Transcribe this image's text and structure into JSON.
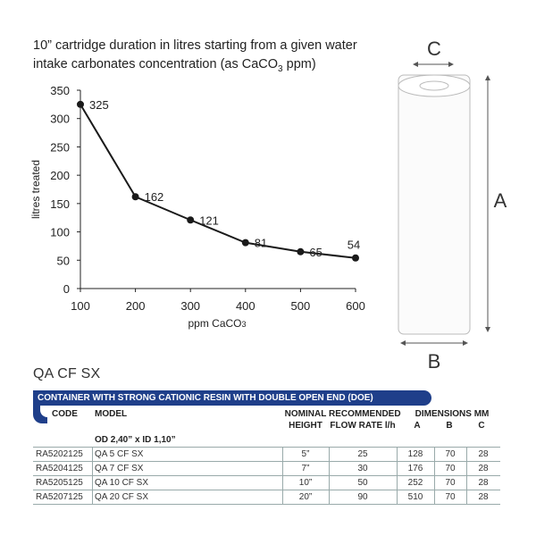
{
  "chart_data": {
    "type": "line",
    "title_main": "10” cartridge duration in litres starting from a given water intake carbonates concentration (as CaCO",
    "title_sub": "3",
    "title_end": " ppm)",
    "xlabel_main": "ppm CaCO",
    "xlabel_sub": "3",
    "ylabel": "litres treated",
    "x": [
      100,
      200,
      300,
      400,
      500,
      600
    ],
    "y": [
      325,
      162,
      121,
      81,
      65,
      54
    ],
    "data_labels": [
      "325",
      "162",
      "121",
      "81",
      "65",
      "54"
    ],
    "x_ticks": [
      "100",
      "200",
      "300",
      "400",
      "500",
      "600"
    ],
    "y_ticks": [
      "0",
      "50",
      "100",
      "150",
      "200",
      "250",
      "300",
      "350"
    ],
    "xlim": [
      100,
      600
    ],
    "ylim": [
      0,
      350
    ],
    "grid": false,
    "line_color": "#1a1a1a"
  },
  "diagram": {
    "label_c": "C",
    "label_a": "A",
    "label_b": "B"
  },
  "product": {
    "title": "QA CF SX",
    "banner": "CONTAINER WITH STRONG CATIONIC RESIN WITH DOUBLE OPEN END (DOE)",
    "banner_color": "#1f3f8a"
  },
  "table": {
    "headers": {
      "code": "CODE",
      "model": "MODEL",
      "nominal_1": "NOMINAL",
      "nominal_2": "HEIGHT",
      "flow_1": "RECOMMENDED",
      "flow_2": "FLOW RATE l/h",
      "dims": "DIMENSIONS MM",
      "a": "A",
      "b": "B",
      "c": "C"
    },
    "subheader": "OD 2,40” x ID 1,10”",
    "rows": [
      {
        "code": "RA5202125",
        "model": "QA 5 CF SX",
        "height": "5”",
        "flow": "25",
        "a": "128",
        "b": "70",
        "c": "28"
      },
      {
        "code": "RA5204125",
        "model": "QA 7 CF SX",
        "height": "7”",
        "flow": "30",
        "a": "176",
        "b": "70",
        "c": "28"
      },
      {
        "code": "RA5205125",
        "model": "QA 10 CF SX",
        "height": "10”",
        "flow": "50",
        "a": "252",
        "b": "70",
        "c": "28"
      },
      {
        "code": "RA5207125",
        "model": "QA 20 CF SX",
        "height": "20”",
        "flow": "90",
        "a": "510",
        "b": "70",
        "c": "28"
      }
    ]
  }
}
